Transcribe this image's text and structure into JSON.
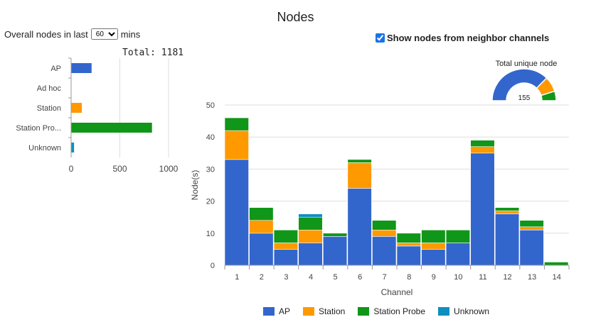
{
  "page": {
    "title": "Nodes",
    "overall_prefix": "Overall nodes in last",
    "overall_value": "60",
    "overall_suffix": "mins",
    "total_label": "Total: 1181",
    "neighbor_label": "Show nodes from neighbor channels",
    "neighbor_checked": true
  },
  "colors": {
    "AP": "#3366cc",
    "Station": "#ff9900",
    "Station Probe": "#109618",
    "Unknown": "#0e8fc0",
    "grid": "#dddddd",
    "axis_text": "#444444"
  },
  "chart_data": [
    {
      "type": "bar",
      "orientation": "horizontal",
      "title": "Overall nodes",
      "categories": [
        "AP",
        "Ad hoc",
        "Station",
        "Station Pro...",
        "Unknown"
      ],
      "values": [
        210,
        0,
        110,
        830,
        30
      ],
      "xticks": [
        0,
        500,
        1000
      ],
      "xlim": [
        0,
        1000
      ]
    },
    {
      "type": "pie",
      "style": "half-donut",
      "title": "Total unique node",
      "center_label": "155",
      "labels": [
        "AP",
        "Station",
        "Station Probe"
      ],
      "values": [
        116,
        24,
        15
      ]
    },
    {
      "type": "bar",
      "stacked": true,
      "title": "",
      "xlabel": "Channel",
      "ylabel": "Node(s)",
      "categories": [
        "1",
        "2",
        "3",
        "4",
        "5",
        "6",
        "7",
        "8",
        "9",
        "10",
        "11",
        "12",
        "13",
        "14"
      ],
      "ylim": [
        0,
        50
      ],
      "yticks": [
        0,
        10,
        20,
        30,
        40,
        50
      ],
      "series": [
        {
          "name": "AP",
          "values": [
            33,
            10,
            5,
            7,
            9,
            24,
            9,
            6,
            5,
            7,
            35,
            16,
            11,
            0
          ]
        },
        {
          "name": "Station",
          "values": [
            9,
            4,
            2,
            4,
            0,
            8,
            2,
            1,
            2,
            0,
            2,
            1,
            1,
            0
          ]
        },
        {
          "name": "Station Probe",
          "values": [
            4,
            4,
            4,
            4,
            1,
            1,
            3,
            3,
            4,
            4,
            2,
            1,
            2,
            1
          ]
        },
        {
          "name": "Unknown",
          "values": [
            0,
            0,
            0,
            1,
            0,
            0,
            0,
            0,
            0,
            0,
            0,
            0,
            0,
            0
          ]
        }
      ]
    }
  ]
}
